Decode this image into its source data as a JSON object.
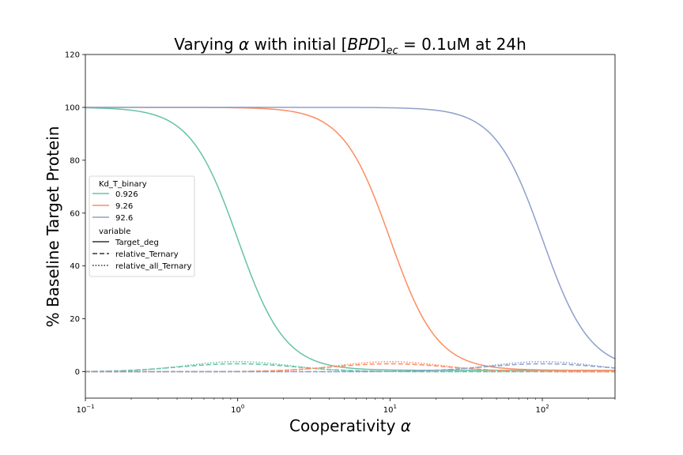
{
  "chart_data": {
    "type": "line",
    "title": "Varying α with initial [BPD]ec = 0.1uM at 24h",
    "title_parts": {
      "prefix": "Varying ",
      "alpha": "α",
      "mid": " with initial [",
      "bpd": "BPD",
      "close": "]",
      "sub": "ec",
      "suffix": " = 0.1uM at 24h"
    },
    "xlabel": "Cooperativity α",
    "xlabel_parts": {
      "text": "Cooperativity ",
      "alpha": "α"
    },
    "ylabel": "% Baseline Target Protein",
    "x_scale": "log",
    "xlim": [
      0.1,
      300
    ],
    "ylim": [
      -10,
      120
    ],
    "x_ticks": [
      {
        "value": 0.1,
        "base": "10",
        "exp": "−1"
      },
      {
        "value": 1,
        "base": "10",
        "exp": "0"
      },
      {
        "value": 10,
        "base": "10",
        "exp": "1"
      },
      {
        "value": 100,
        "base": "10",
        "exp": "2"
      }
    ],
    "y_ticks": [
      0,
      20,
      40,
      60,
      80,
      100,
      120
    ],
    "y_tick_labels": [
      "0",
      "20",
      "40",
      "60",
      "80",
      "100",
      "120"
    ],
    "grid": false,
    "legend": {
      "placement": "center-left",
      "hue_title": "Kd_T_binary",
      "hue_entries": [
        {
          "label": "0.926",
          "color": "#66c2a5",
          "k": 1.0
        },
        {
          "label": "9.26",
          "color": "#fc8d62",
          "k": 10.0
        },
        {
          "label": "92.6",
          "color": "#8da0cb",
          "k": 100.0
        }
      ],
      "style_title": "variable",
      "style_entries": [
        {
          "label": "Target_deg",
          "dash": "solid"
        },
        {
          "label": "relative_Ternary",
          "dash": "dashed"
        },
        {
          "label": "relative_all_Ternary",
          "dash": "dotted"
        }
      ]
    },
    "series_model": {
      "Target_deg": {
        "upper": 100,
        "lower": 0.5,
        "hill": 2.8
      },
      "relative_Ternary": {
        "peak": 3.0,
        "log_width": 0.38
      },
      "relative_all_Ternary": {
        "peak": 3.8,
        "log_width": 0.34
      }
    }
  }
}
